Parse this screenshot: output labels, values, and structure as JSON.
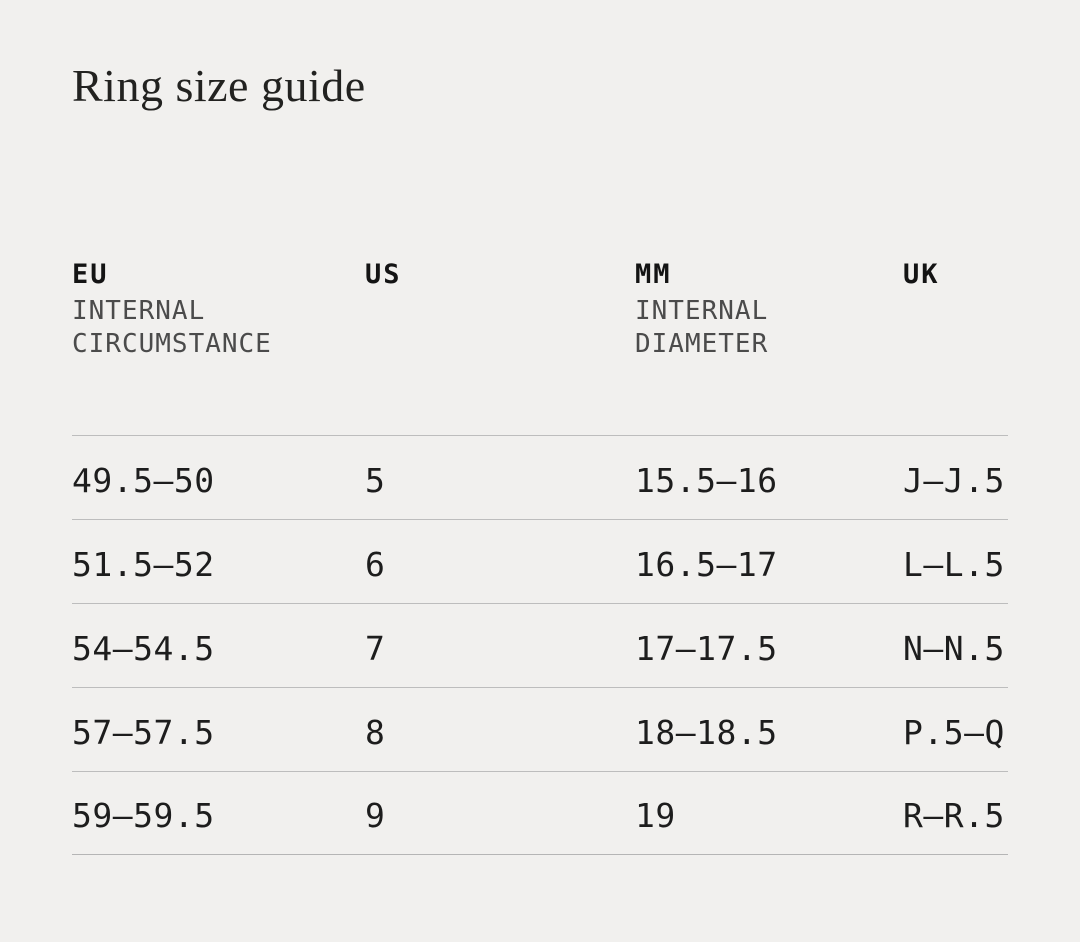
{
  "page": {
    "title": "Ring size guide",
    "background_color": "#f1f0ee",
    "divider_color": "#bdbdbd",
    "text_color": "#1d1d1d"
  },
  "table": {
    "columns": [
      {
        "label": "EU",
        "sublabel_line1": "INTERNAL",
        "sublabel_line2": "CIRCUMSTANCE"
      },
      {
        "label": "US",
        "sublabel_line1": "",
        "sublabel_line2": ""
      },
      {
        "label": "MM",
        "sublabel_line1": "INTERNAL",
        "sublabel_line2": "DIAMETER"
      },
      {
        "label": "UK",
        "sublabel_line1": "",
        "sublabel_line2": ""
      }
    ],
    "rows": [
      {
        "eu": "49.5—50",
        "us": "5",
        "mm": "15.5—16",
        "uk": "J—J.5"
      },
      {
        "eu": "51.5—52",
        "us": "6",
        "mm": "16.5—17",
        "uk": "L—L.5"
      },
      {
        "eu": "54—54.5",
        "us": "7",
        "mm": "17—17.5",
        "uk": "N—N.5"
      },
      {
        "eu": "57—57.5",
        "us": "8",
        "mm": "18—18.5",
        "uk": "P.5—Q"
      },
      {
        "eu": "59—59.5",
        "us": "9",
        "mm": "19",
        "uk": "R—R.5"
      }
    ]
  }
}
